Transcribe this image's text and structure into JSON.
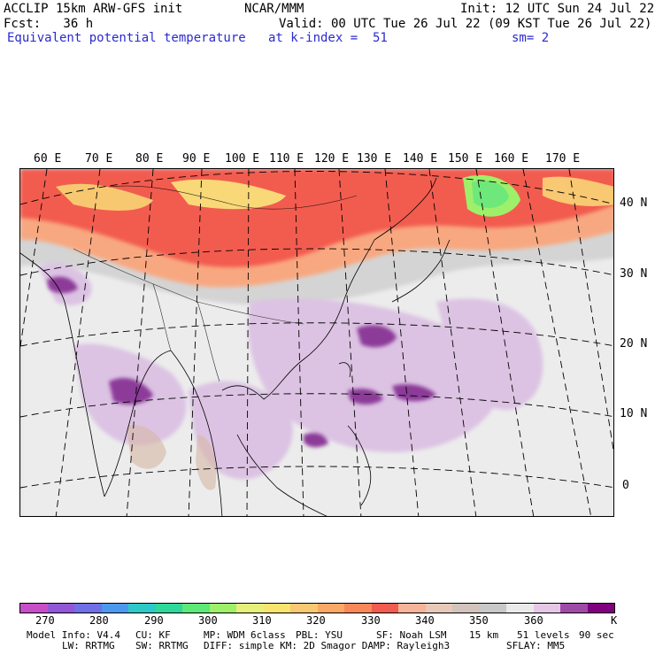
{
  "header": {
    "model_line": "ACCLIP 15km ARW-GFS init",
    "org": "NCAR/MMM",
    "init": "Init: 12 UTC Sun 24 Jul 22",
    "fcst": "Fcst:   36 h",
    "valid": "Valid: 00 UTC Tue 26 Jul 22 (09 KST Tue 26 Jul 22)",
    "field": "Equivalent potential temperature",
    "level": "at k-index =  51",
    "smoothing": "sm= 2"
  },
  "map": {
    "lon_labels": [
      "60 E",
      "70 E",
      "80 E",
      "90 E",
      "100 E",
      "110 E",
      "120 E",
      "130 E",
      "140 E",
      "150 E",
      "160 E",
      "170 E"
    ],
    "lat_labels": [
      "40 N",
      "30 N",
      "20 N",
      "10 N",
      "0"
    ]
  },
  "colorbar": {
    "colors": [
      "#c64fc8",
      "#9157d6",
      "#7070e6",
      "#4d98ef",
      "#2fc8c8",
      "#2fd89a",
      "#5de878",
      "#9ef06a",
      "#e4f07a",
      "#f8e46e",
      "#f9c872",
      "#f9a866",
      "#f8885a",
      "#f25c4f",
      "#f8b49a",
      "#e8c8b8",
      "#d2c4bc",
      "#c8c8c8",
      "#eaeaea",
      "#e6c8e6",
      "#a04aa8",
      "#800080"
    ],
    "labels": [
      "270",
      "280",
      "290",
      "300",
      "310",
      "320",
      "330",
      "340",
      "350",
      "360"
    ],
    "units": "K"
  },
  "footer": {
    "model_info": "Model Info: V4.4",
    "cu": "CU: KF",
    "mp": "MP: WDM 6class",
    "pbl": "PBL: YSU",
    "sf": "SF: Noah LSM",
    "res": "15 km",
    "levels": "51 levels",
    "dt": "90 sec",
    "lw": "LW: RRTMG",
    "sw": "SW: RRTMG",
    "diff": "DIFF: simple KM: 2D Smagor DAMP: Rayleigh3",
    "sflay": "SFLAY: MM5"
  }
}
